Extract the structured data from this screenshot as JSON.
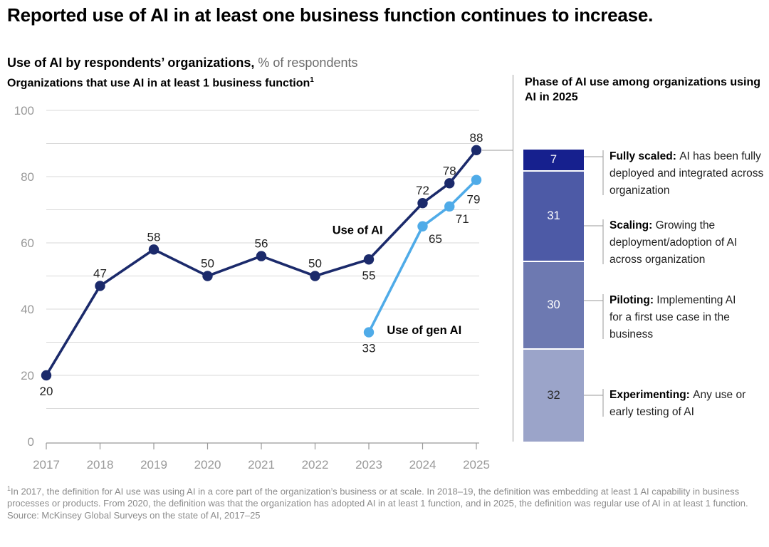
{
  "page": {
    "title": "Reported use of AI in at least one business function continues to increase.",
    "subtitle_bold": "Use of AI by respondents’ organizations,",
    "subtitle_unit": "% of respondents"
  },
  "chart_data": {
    "type": "line",
    "title": "Organizations that use AI in at least 1 business function",
    "title_superscript": "1",
    "ylabel": "% of respondents",
    "ylim": [
      0,
      100
    ],
    "y_ticks": [
      0,
      20,
      40,
      60,
      80,
      100
    ],
    "gridline_step": 10,
    "x_ticks": [
      2017,
      2018,
      2019,
      2020,
      2021,
      2022,
      2023,
      2024,
      2025
    ],
    "series": [
      {
        "name": "Use of AI",
        "color": "#1b2a6b",
        "points": [
          {
            "x": 2017,
            "y": 20,
            "label_pos": "below"
          },
          {
            "x": 2018,
            "y": 47,
            "label_pos": "above"
          },
          {
            "x": 2019,
            "y": 58,
            "label_pos": "above"
          },
          {
            "x": 2020,
            "y": 50,
            "label_pos": "above"
          },
          {
            "x": 2021,
            "y": 56,
            "label_pos": "above"
          },
          {
            "x": 2022,
            "y": 50,
            "label_pos": "above"
          },
          {
            "x": 2023,
            "y": 55,
            "label_pos": "below"
          },
          {
            "x": 2024,
            "y": 72,
            "label_pos": "above"
          },
          {
            "x": 2024.5,
            "y": 78,
            "label_pos": "above"
          },
          {
            "x": 2025,
            "y": 88,
            "label_pos": "above"
          }
        ]
      },
      {
        "name": "Use of gen AI",
        "color": "#4fabe8",
        "points": [
          {
            "x": 2023,
            "y": 33,
            "label_pos": "below"
          },
          {
            "x": 2024,
            "y": 65,
            "label_pos": "below-right"
          },
          {
            "x": 2024.5,
            "y": 71,
            "label_pos": "below-right"
          },
          {
            "x": 2025,
            "y": 79,
            "label_pos": "below-left"
          }
        ]
      }
    ],
    "annotations": [
      {
        "text": "Use of AI",
        "year": 2022.79,
        "value": 64
      },
      {
        "text": "Use of gen AI",
        "year": 2024.03,
        "value": 33.8
      }
    ]
  },
  "phase_panel": {
    "title": "Phase of AI use among organizations using AI in 2025",
    "total": 100,
    "phases": [
      {
        "value": 7,
        "label": "Fully scaled",
        "description": "AI has been fully deployed and integrated across organization",
        "color": "#16208e",
        "text_color": "#ffffff"
      },
      {
        "value": 31,
        "label": "Scaling",
        "description": "Growing the deployment/adoption of AI across organization",
        "color": "#4d5aa6",
        "text_color": "#ffffff"
      },
      {
        "value": 30,
        "label": "Piloting",
        "description": "Implementing AI for a first use case in the business",
        "color": "#6d79b1",
        "text_color": "#ffffff"
      },
      {
        "value": 32,
        "label": "Experimenting",
        "description": "Any use or early testing of AI",
        "color": "#9ba4c9",
        "text_color": "#2b2b2b"
      }
    ]
  },
  "footnotes": {
    "note1_superscript": "1",
    "note1": "In 2017, the definition for AI use was using AI in a core part of the organization’s business or at scale. In 2018–19, the definition was embedding at least 1 AI capability in business processes or products. From 2020, the definition was that the organization has adopted AI in at least 1 function, and in 2025, the definition was regular use of AI in at least 1 function.",
    "source": "Source: McKinsey Global Surveys on the state of AI, 2017–25"
  }
}
